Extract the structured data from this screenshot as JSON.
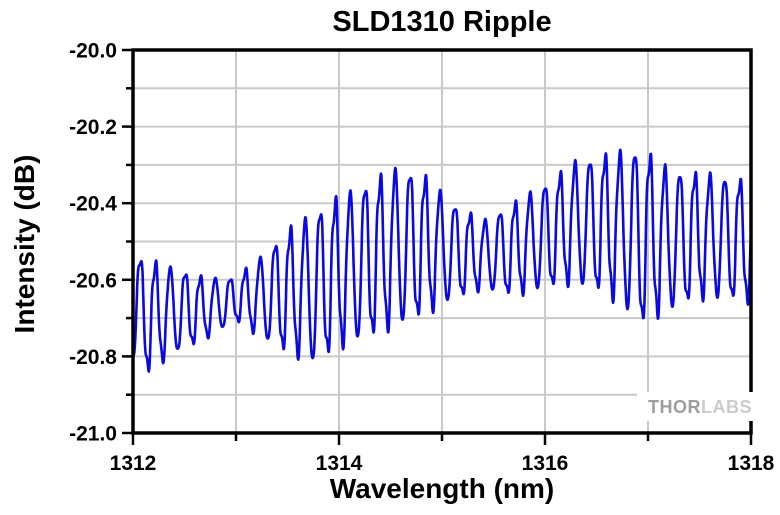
{
  "chart_data": {
    "type": "line",
    "title": "SLD1310 Ripple",
    "xlabel": "Wavelength (nm)",
    "ylabel": "Intensity (dB)",
    "xlim": [
      1312,
      1318
    ],
    "ylim": [
      -21.0,
      -20.0
    ],
    "x_major_ticks": [
      1312,
      1314,
      1316,
      1318
    ],
    "x_major_labels": [
      "1312",
      "1314",
      "1316",
      "1318"
    ],
    "x_minor_ticks": [
      1313,
      1315,
      1317
    ],
    "y_major_ticks": [
      -20.0,
      -20.2,
      -20.4,
      -20.6,
      -20.8,
      -21.0
    ],
    "y_major_labels": [
      "-20.0",
      "-20.2",
      "-20.4",
      "-20.6",
      "-20.8",
      "-21.0"
    ],
    "y_minor_ticks": [
      -20.1,
      -20.3,
      -20.5,
      -20.7,
      -20.9
    ],
    "grid": {
      "show": true,
      "color": "#c9c9c9",
      "x_step_nm": 1,
      "y_step_db": 0.1
    },
    "frame_color": "#000000",
    "series": [
      {
        "name": "SLD1310 ripple",
        "color": "#0a0ae0",
        "ripple_period_nm": 0.1455,
        "phase_rad": -1.452,
        "envelope": {
          "x": [
            1312.0,
            1312.15,
            1312.4,
            1312.7,
            1313.0,
            1313.25,
            1313.5,
            1313.75,
            1314.0,
            1314.3,
            1314.6,
            1314.85,
            1315.1,
            1315.4,
            1315.7,
            1316.0,
            1316.3,
            1316.6,
            1316.95,
            1317.2,
            1317.5,
            1317.75,
            1318.0
          ],
          "upper": [
            -20.52,
            -20.54,
            -20.56,
            -20.59,
            -20.59,
            -20.53,
            -20.46,
            -20.41,
            -20.37,
            -20.33,
            -20.29,
            -20.32,
            -20.39,
            -20.44,
            -20.39,
            -20.34,
            -20.28,
            -20.26,
            -20.24,
            -20.3,
            -20.31,
            -20.32,
            -20.33
          ],
          "lower": [
            -20.82,
            -20.85,
            -20.8,
            -20.76,
            -20.71,
            -20.76,
            -20.8,
            -20.83,
            -20.79,
            -20.76,
            -20.73,
            -20.7,
            -20.66,
            -20.63,
            -20.65,
            -20.63,
            -20.62,
            -20.65,
            -20.73,
            -20.69,
            -20.66,
            -20.66,
            -20.67
          ]
        }
      }
    ]
  },
  "watermark": {
    "part1": "THOR",
    "part2": "LABS"
  }
}
